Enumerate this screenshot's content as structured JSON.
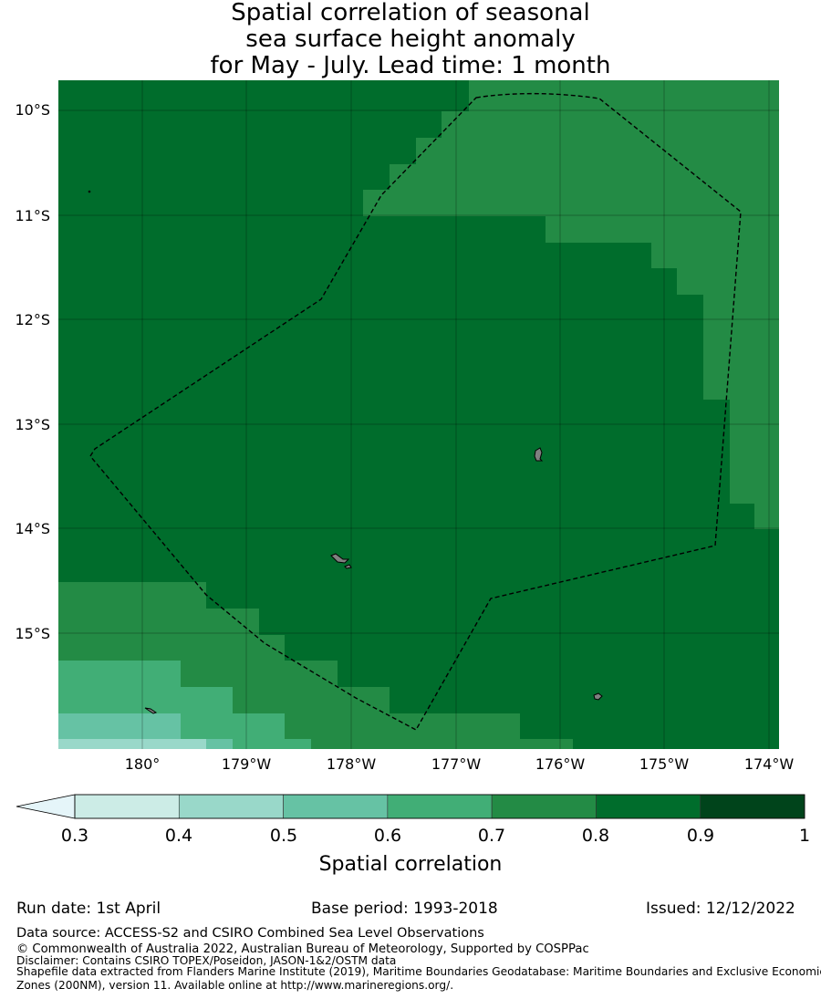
{
  "title": {
    "line1": "Spatial correlation of seasonal",
    "line2": "sea surface height anomaly",
    "line3": "for May - July. Lead time: 1 month"
  },
  "map": {
    "lat_labels": [
      "10°S",
      "11°S",
      "12°S",
      "13°S",
      "14°S",
      "15°S"
    ],
    "lon_labels": [
      "180°",
      "179°W",
      "178°W",
      "177°W",
      "176°W",
      "175°W",
      "174°W"
    ],
    "lon_range": [
      180.8,
      173.9
    ],
    "lat_range": [
      9.73,
      16.1
    ],
    "color_levels": {
      "0.3-0.4": "#ccece6",
      "0.4-0.5": "#99d8c9",
      "0.5-0.6": "#66c2a4",
      "0.6-0.7": "#41ae76",
      "0.7-0.8": "#238b45",
      "0.8-0.9": "#006d2c",
      "0.9-1": "#00441b"
    },
    "eez_boundary_color": "#000000",
    "land_color": "#808080"
  },
  "colorbar": {
    "ticks": [
      "0.3",
      "0.4",
      "0.5",
      "0.6",
      "0.7",
      "0.8",
      "0.9",
      "1"
    ],
    "colors": [
      "#ccece6",
      "#99d8c9",
      "#66c2a4",
      "#41ae76",
      "#238b45",
      "#006d2c",
      "#00441b"
    ],
    "under_color": "#e5f5f9",
    "label": "Spatial correlation"
  },
  "footer": {
    "run_date": "Run date: 1st April",
    "base_period": "Base period: 1993-2018",
    "issued": "Issued: 12/12/2022",
    "data_source": "Data source: ACCESS-S2 and CSIRO Combined Sea Level Observations",
    "copyright": "© Commonwealth of Australia 2022, Australian Bureau of Meteorology, Supported by COSPPac",
    "disclaimer": "Disclaimer: Contains CSIRO TOPEX/Poseidon, JASON-1&2/OSTM data",
    "shapefile1": "Shapefile data extracted from Flanders Marine Institute (2019), Maritime Boundaries Geodatabase: Maritime Boundaries and Exclusive Economic",
    "shapefile2": "Zones (200NM), version 11. Available online at http://www.marineregions.org/."
  }
}
